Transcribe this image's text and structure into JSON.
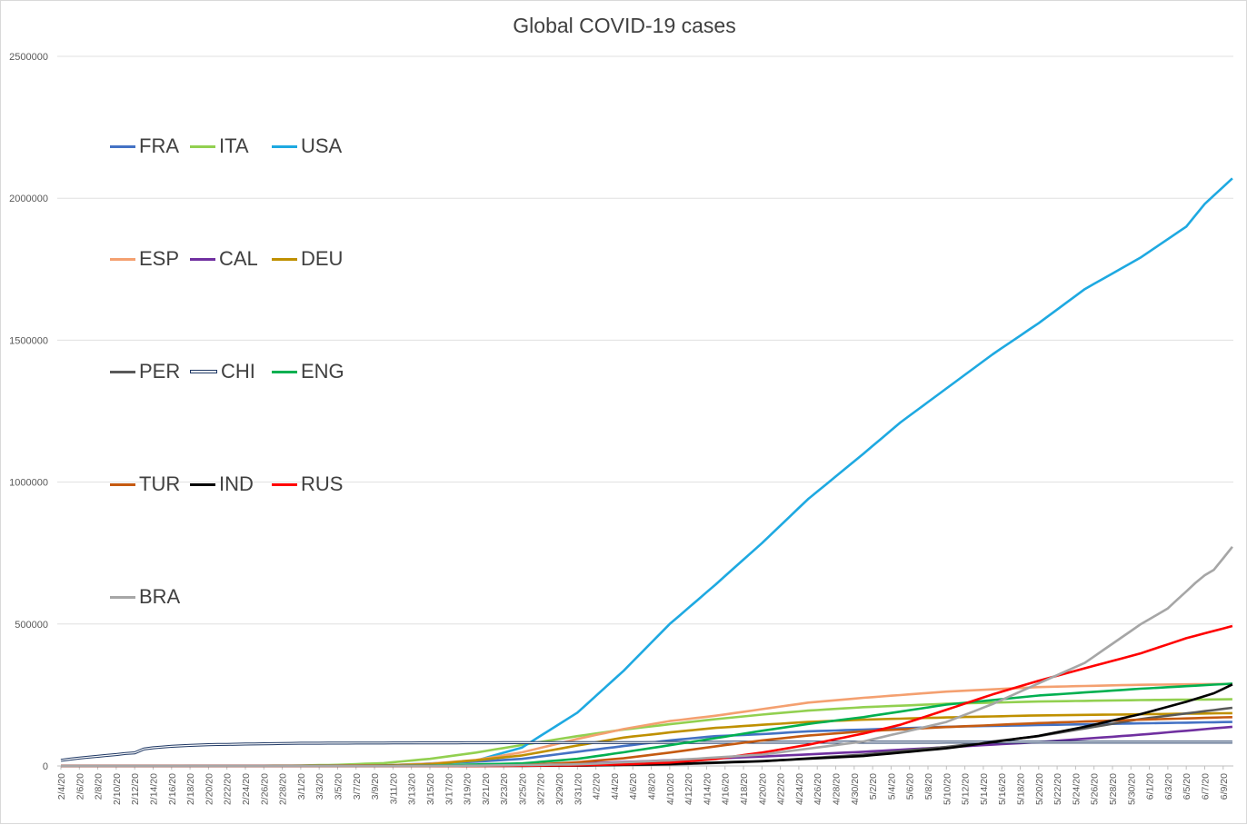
{
  "chart_data": {
    "type": "line",
    "title": "Global COVID-19 cases",
    "xlabel": "",
    "ylabel": "",
    "ylim": [
      0,
      2500000
    ],
    "y_ticks": [
      "0",
      "500000",
      "1000000",
      "1500000",
      "2000000",
      "2500000"
    ],
    "x_start": "2/4/20",
    "x_end": "6/10/20",
    "x_tick_labels": [
      "2/4/20",
      "2/6/20",
      "2/8/20",
      "2/10/20",
      "2/12/20",
      "2/14/20",
      "2/16/20",
      "2/18/20",
      "2/20/20",
      "2/22/20",
      "2/24/20",
      "2/26/20",
      "2/28/20",
      "3/1/20",
      "3/3/20",
      "3/5/20",
      "3/7/20",
      "3/9/20",
      "3/11/20",
      "3/13/20",
      "3/15/20",
      "3/17/20",
      "3/19/20",
      "3/21/20",
      "3/23/20",
      "3/25/20",
      "3/27/20",
      "3/29/20",
      "3/31/20",
      "4/2/20",
      "4/4/20",
      "4/6/20",
      "4/8/20",
      "4/10/20",
      "4/12/20",
      "4/14/20",
      "4/16/20",
      "4/18/20",
      "4/20/20",
      "4/22/20",
      "4/24/20",
      "4/26/20",
      "4/28/20",
      "4/30/20",
      "5/2/20",
      "5/4/20",
      "5/6/20",
      "5/8/20",
      "5/10/20",
      "5/12/20",
      "5/14/20",
      "5/16/20",
      "5/18/20",
      "5/20/20",
      "5/22/20",
      "5/24/20",
      "5/26/20",
      "5/28/20",
      "5/30/20",
      "6/1/20",
      "6/3/20",
      "6/5/20",
      "6/7/20",
      "6/9/20"
    ],
    "grid": true,
    "legend_position": "left",
    "series": [
      {
        "name": "FRA",
        "color": "#4472C4",
        "points": [
          [
            "2/4/20",
            0
          ],
          [
            "2/28/20",
            100
          ],
          [
            "3/10/20",
            2000
          ],
          [
            "3/20/20",
            15000
          ],
          [
            "3/25/20",
            25000
          ],
          [
            "3/31/20",
            50000
          ],
          [
            "4/5/20",
            70000
          ],
          [
            "4/10/20",
            90000
          ],
          [
            "4/15/20",
            105000
          ],
          [
            "4/20/20",
            112000
          ],
          [
            "4/25/20",
            122000
          ],
          [
            "5/1/20",
            128000
          ],
          [
            "5/10/20",
            138000
          ],
          [
            "5/20/20",
            144000
          ],
          [
            "5/31/20",
            150000
          ],
          [
            "6/10/20",
            155000
          ]
        ]
      },
      {
        "name": "ITA",
        "color": "#92D050",
        "points": [
          [
            "2/4/20",
            0
          ],
          [
            "2/21/20",
            0
          ],
          [
            "2/29/20",
            1100
          ],
          [
            "3/5/20",
            3900
          ],
          [
            "3/10/20",
            10000
          ],
          [
            "3/15/20",
            25000
          ],
          [
            "3/20/20",
            47000
          ],
          [
            "3/25/20",
            74000
          ],
          [
            "3/31/20",
            105000
          ],
          [
            "4/5/20",
            128000
          ],
          [
            "4/10/20",
            147000
          ],
          [
            "4/15/20",
            165000
          ],
          [
            "4/20/20",
            181000
          ],
          [
            "4/25/20",
            195000
          ],
          [
            "5/1/20",
            207000
          ],
          [
            "5/10/20",
            219000
          ],
          [
            "5/20/20",
            227000
          ],
          [
            "5/31/20",
            232000
          ],
          [
            "6/10/20",
            235000
          ]
        ]
      },
      {
        "name": "USA",
        "color": "#1EA9E1",
        "points": [
          [
            "2/4/20",
            0
          ],
          [
            "2/29/20",
            70
          ],
          [
            "3/10/20",
            1000
          ],
          [
            "3/15/20",
            3500
          ],
          [
            "3/20/20",
            19000
          ],
          [
            "3/25/20",
            65000
          ],
          [
            "3/31/20",
            188000
          ],
          [
            "4/5/20",
            335000
          ],
          [
            "4/10/20",
            500000
          ],
          [
            "4/15/20",
            640000
          ],
          [
            "4/20/20",
            785000
          ],
          [
            "4/25/20",
            940000
          ],
          [
            "5/1/20",
            1100000
          ],
          [
            "5/5/20",
            1210000
          ],
          [
            "5/10/20",
            1330000
          ],
          [
            "5/15/20",
            1450000
          ],
          [
            "5/20/20",
            1560000
          ],
          [
            "5/25/20",
            1680000
          ],
          [
            "5/31/20",
            1790000
          ],
          [
            "6/5/20",
            1900000
          ],
          [
            "6/7/20",
            1980000
          ],
          [
            "6/10/20",
            2070000
          ]
        ]
      },
      {
        "name": "ESP",
        "color": "#F4A070",
        "points": [
          [
            "2/4/20",
            0
          ],
          [
            "3/1/20",
            100
          ],
          [
            "3/10/20",
            1700
          ],
          [
            "3/15/20",
            7800
          ],
          [
            "3/20/20",
            21000
          ],
          [
            "3/25/20",
            48000
          ],
          [
            "3/31/20",
            95000
          ],
          [
            "4/5/20",
            130000
          ],
          [
            "4/10/20",
            158000
          ],
          [
            "4/15/20",
            177000
          ],
          [
            "4/20/20",
            200000
          ],
          [
            "4/25/20",
            223000
          ],
          [
            "5/1/20",
            240000
          ],
          [
            "5/10/20",
            262000
          ],
          [
            "5/20/20",
            278000
          ],
          [
            "5/31/20",
            286000
          ],
          [
            "6/10/20",
            289000
          ]
        ]
      },
      {
        "name": "CAL",
        "color": "#7030A0",
        "points": [
          [
            "2/4/20",
            0
          ],
          [
            "3/10/20",
            200
          ],
          [
            "3/20/20",
            1200
          ],
          [
            "3/31/20",
            8000
          ],
          [
            "4/10/20",
            20000
          ],
          [
            "4/20/20",
            33000
          ],
          [
            "5/1/20",
            50000
          ],
          [
            "5/10/20",
            66000
          ],
          [
            "5/20/20",
            84000
          ],
          [
            "5/31/20",
            110000
          ],
          [
            "6/10/20",
            138000
          ]
        ]
      },
      {
        "name": "DEU",
        "color": "#BF9000",
        "points": [
          [
            "2/4/20",
            0
          ],
          [
            "3/1/20",
            100
          ],
          [
            "3/10/20",
            1500
          ],
          [
            "3/15/20",
            6000
          ],
          [
            "3/20/20",
            20000
          ],
          [
            "3/25/20",
            37000
          ],
          [
            "3/31/20",
            72000
          ],
          [
            "4/5/20",
            100000
          ],
          [
            "4/10/20",
            118000
          ],
          [
            "4/15/20",
            134000
          ],
          [
            "4/20/20",
            145000
          ],
          [
            "4/25/20",
            155000
          ],
          [
            "5/1/20",
            163000
          ],
          [
            "5/10/20",
            171000
          ],
          [
            "5/20/20",
            178000
          ],
          [
            "5/31/20",
            182000
          ],
          [
            "6/10/20",
            186000
          ]
        ]
      },
      {
        "name": "PER",
        "color": "#595959",
        "points": [
          [
            "2/4/20",
            0
          ],
          [
            "3/15/20",
            0
          ],
          [
            "3/25/20",
            400
          ],
          [
            "3/31/20",
            1000
          ],
          [
            "4/10/20",
            5000
          ],
          [
            "4/20/20",
            16000
          ],
          [
            "5/1/20",
            40000
          ],
          [
            "5/10/20",
            67000
          ],
          [
            "5/20/20",
            105000
          ],
          [
            "5/31/20",
            165000
          ],
          [
            "6/10/20",
            205000
          ]
        ]
      },
      {
        "name": "CHI",
        "color": "#1F3864",
        "hollow": true,
        "points": [
          [
            "2/4/20",
            20000
          ],
          [
            "2/6/20",
            28000
          ],
          [
            "2/8/20",
            34000
          ],
          [
            "2/10/20",
            40000
          ],
          [
            "2/11/20",
            44000
          ],
          [
            "2/12/20",
            46000
          ],
          [
            "2/13/20",
            60000
          ],
          [
            "2/14/20",
            64000
          ],
          [
            "2/16/20",
            69000
          ],
          [
            "2/18/20",
            72500
          ],
          [
            "2/20/20",
            75000
          ],
          [
            "2/24/20",
            77000
          ],
          [
            "3/1/20",
            80000
          ],
          [
            "3/12/20",
            81000
          ],
          [
            "3/25/20",
            82000
          ],
          [
            "4/10/20",
            82500
          ],
          [
            "4/17/20",
            83500
          ],
          [
            "6/10/20",
            84000
          ]
        ]
      },
      {
        "name": "ENG",
        "color": "#00B050",
        "points": [
          [
            "2/4/20",
            0
          ],
          [
            "3/1/20",
            0
          ],
          [
            "3/15/20",
            1400
          ],
          [
            "3/25/20",
            9000
          ],
          [
            "3/31/20",
            25000
          ],
          [
            "4/5/20",
            48000
          ],
          [
            "4/10/20",
            73000
          ],
          [
            "4/15/20",
            98000
          ],
          [
            "4/20/20",
            124000
          ],
          [
            "4/25/20",
            148000
          ],
          [
            "5/1/20",
            172000
          ],
          [
            "5/10/20",
            216000
          ],
          [
            "5/20/20",
            248000
          ],
          [
            "5/31/20",
            272000
          ],
          [
            "6/10/20",
            290000
          ]
        ]
      },
      {
        "name": "TUR",
        "color": "#C55A11",
        "points": [
          [
            "2/4/20",
            0
          ],
          [
            "3/15/20",
            0
          ],
          [
            "3/20/20",
            400
          ],
          [
            "3/25/20",
            2400
          ],
          [
            "3/31/20",
            13000
          ],
          [
            "4/5/20",
            27000
          ],
          [
            "4/10/20",
            47000
          ],
          [
            "4/15/20",
            69000
          ],
          [
            "4/20/20",
            90000
          ],
          [
            "4/25/20",
            107000
          ],
          [
            "5/1/20",
            122000
          ],
          [
            "5/10/20",
            137000
          ],
          [
            "5/20/20",
            151000
          ],
          [
            "5/31/20",
            163000
          ],
          [
            "6/10/20",
            172000
          ]
        ]
      },
      {
        "name": "IND",
        "color": "#000000",
        "points": [
          [
            "2/4/20",
            0
          ],
          [
            "3/25/20",
            600
          ],
          [
            "3/31/20",
            1400
          ],
          [
            "4/10/20",
            7000
          ],
          [
            "4/20/20",
            17000
          ],
          [
            "5/1/20",
            35000
          ],
          [
            "5/10/20",
            62000
          ],
          [
            "5/20/20",
            106000
          ],
          [
            "5/25/20",
            138000
          ],
          [
            "5/31/20",
            182000
          ],
          [
            "6/5/20",
            226000
          ],
          [
            "6/8/20",
            256000
          ],
          [
            "6/10/20",
            287000
          ]
        ]
      },
      {
        "name": "RUS",
        "color": "#FF0000",
        "points": [
          [
            "2/4/20",
            0
          ],
          [
            "3/20/20",
            0
          ],
          [
            "3/25/20",
            660
          ],
          [
            "3/31/20",
            2300
          ],
          [
            "4/5/20",
            5400
          ],
          [
            "4/10/20",
            11900
          ],
          [
            "4/15/20",
            24500
          ],
          [
            "4/20/20",
            47000
          ],
          [
            "4/25/20",
            74600
          ],
          [
            "5/1/20",
            114000
          ],
          [
            "5/5/20",
            145000
          ],
          [
            "5/10/20",
            198000
          ],
          [
            "5/15/20",
            252000
          ],
          [
            "5/20/20",
            300000
          ],
          [
            "5/25/20",
            344000
          ],
          [
            "5/31/20",
            396000
          ],
          [
            "6/5/20",
            450000
          ],
          [
            "6/10/20",
            493000
          ]
        ]
      },
      {
        "name": "BRA",
        "color": "#A6A6A6",
        "points": [
          [
            "2/4/20",
            0
          ],
          [
            "3/10/20",
            30
          ],
          [
            "3/20/20",
            900
          ],
          [
            "3/31/20",
            5700
          ],
          [
            "4/10/20",
            19600
          ],
          [
            "4/20/20",
            40000
          ],
          [
            "5/1/20",
            86000
          ],
          [
            "5/10/20",
            155000
          ],
          [
            "5/15/20",
            218000
          ],
          [
            "5/20/20",
            291000
          ],
          [
            "5/25/20",
            363000
          ],
          [
            "5/31/20",
            498000
          ],
          [
            "6/3/20",
            555000
          ],
          [
            "6/5/20",
            615000
          ],
          [
            "6/6/20",
            645000
          ],
          [
            "6/7/20",
            672000
          ],
          [
            "6/8/20",
            691000
          ],
          [
            "6/10/20",
            772000
          ]
        ]
      }
    ]
  }
}
